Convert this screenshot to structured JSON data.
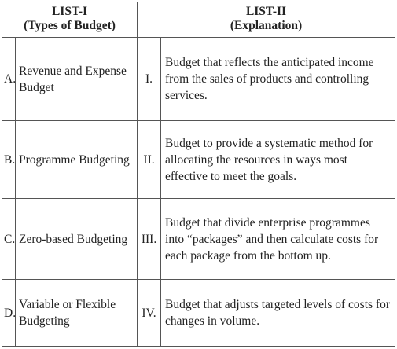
{
  "header": {
    "list1_title": "LIST-I",
    "list1_subtitle": "(Types of Budget)",
    "list2_title": "LIST-II",
    "list2_subtitle": "(Explanation)"
  },
  "rows": [
    {
      "letter": "A.",
      "type": "Revenue and Expense Budget",
      "roman": "I.",
      "explanation": "Budget that reflects the anticipated income from the sales of products and controlling services."
    },
    {
      "letter": "B.",
      "type": "Programme Budgeting",
      "roman": "II.",
      "explanation": "Budget to provide a systematic method for allocating the resources in ways most effective to meet the goals."
    },
    {
      "letter": "C.",
      "type": "Zero-based Budgeting",
      "roman": "III.",
      "explanation": "Budget that divide enterprise programmes into “packages” and then calculate costs for each package from the bottom up."
    },
    {
      "letter": "D.",
      "type": "Variable or Flexible Budgeting",
      "roman": "IV.",
      "explanation": "Budget that adjusts targeted levels of costs for changes in volume."
    }
  ]
}
